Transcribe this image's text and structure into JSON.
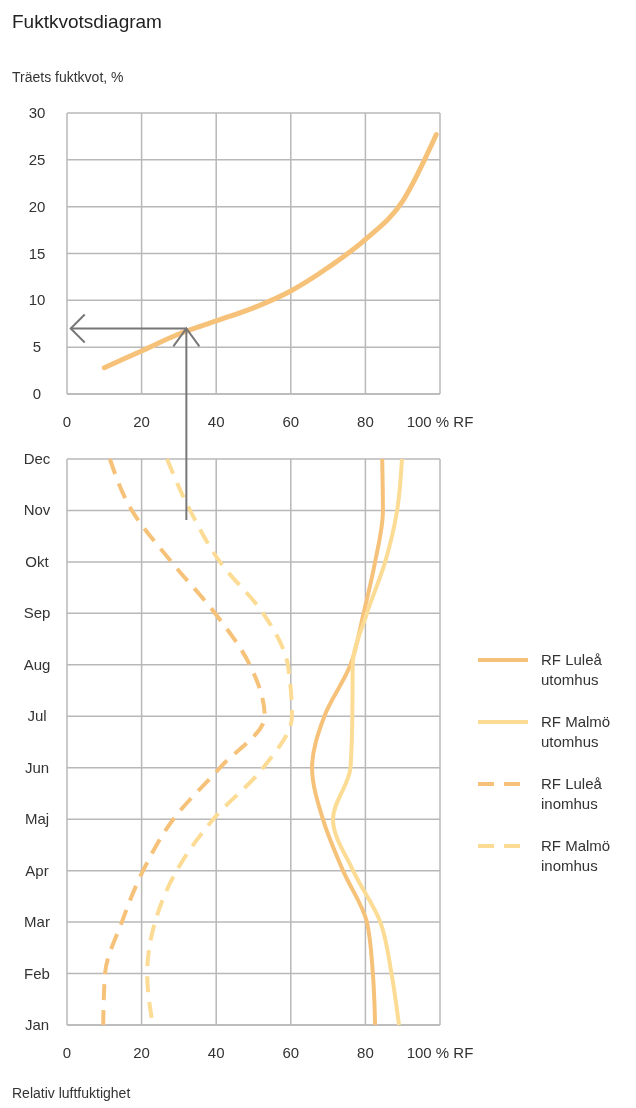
{
  "chart_data": [
    {
      "type": "line",
      "title": "Fuktkvotsdiagram",
      "ylabel": "Träets fuktkvot, %",
      "x": [
        10,
        20,
        30,
        40,
        50,
        60,
        70,
        80,
        90,
        99
      ],
      "series": [
        {
          "color": "#f6c27a",
          "values": [
            2.8,
            4.6,
            6.4,
            7.8,
            9.2,
            11,
            13.5,
            16.5,
            20.6,
            27.7
          ]
        }
      ],
      "xlim": [
        0,
        100
      ],
      "xticks": [
        0,
        20,
        40,
        60,
        80,
        {
          "value": 100,
          "label": "100 % RF"
        }
      ],
      "ylim": [
        0,
        30
      ],
      "yticks": [
        0,
        5,
        10,
        15,
        20,
        25,
        30
      ],
      "grid": true,
      "line_style": "solid",
      "ref_lines": [
        {
          "axis": "x",
          "value": 32,
          "color": "#777777"
        },
        {
          "axis": "y",
          "value": 7,
          "color": "#777777"
        }
      ]
    },
    {
      "type": "line",
      "orientation": "horizontal",
      "xlabel": "Relativ luftfuktighet",
      "categories": [
        "Dec",
        "Nov",
        "Okt",
        "Sep",
        "Aug",
        "Jul",
        "Jun",
        "Maj",
        "Apr",
        "Mar",
        "Feb",
        "Jan"
      ],
      "series": [
        {
          "name": "RF Luleå utomhus",
          "color": "#f6c27a",
          "line_style": "solid",
          "values": [
            84.5,
            84.7,
            82.6,
            79.5,
            76,
            69,
            65.7,
            68.6,
            74,
            80.4,
            82,
            82.6
          ]
        },
        {
          "name": "RF Malmö utomhus",
          "color": "#fcdc95",
          "line_style": "solid",
          "values": [
            89.8,
            88.5,
            85.3,
            80.4,
            76.6,
            76.5,
            76,
            71.3,
            76.7,
            84,
            87,
            89
          ]
        },
        {
          "name": "RF Luleå inomhus",
          "color": "#f6c27a",
          "line_style": "dashed",
          "values": [
            11.5,
            17.4,
            28,
            39.7,
            49,
            53,
            41,
            28.5,
            20.4,
            14.7,
            10.2,
            9.7
          ]
        },
        {
          "name": "RF Malmö inomhus",
          "color": "#fcdc95",
          "line_style": "dashed",
          "values": [
            26.8,
            33,
            41,
            52.6,
            59.2,
            60.3,
            52.6,
            39.2,
            29.4,
            23.6,
            21.5,
            23
          ]
        }
      ],
      "xlim": [
        0,
        100
      ],
      "xticks": [
        0,
        20,
        40,
        60,
        80,
        {
          "value": 100,
          "label": "100 % RF"
        }
      ],
      "grid": true,
      "legend": "right"
    }
  ]
}
